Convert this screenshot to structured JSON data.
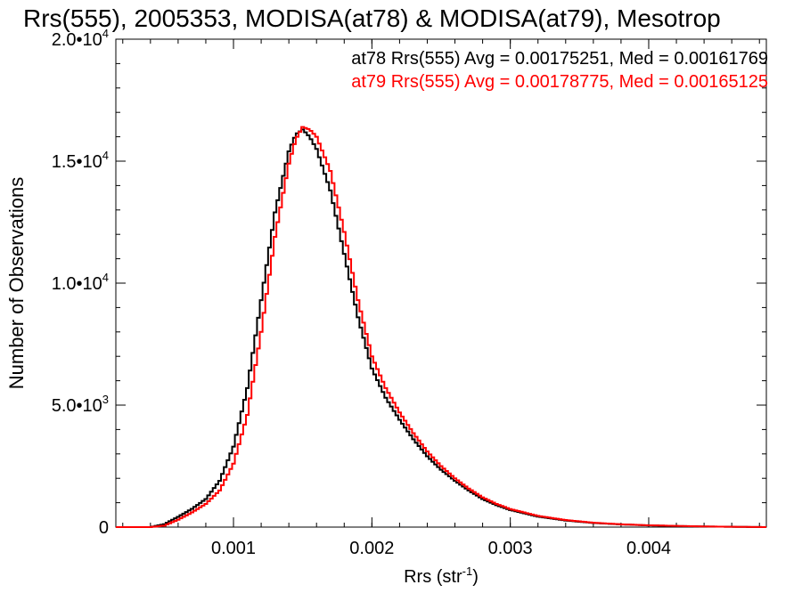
{
  "chart_data": {
    "type": "line",
    "title": "Rrs(555), 2005353, MODISA(at78) & MODISA(at79), Mesotrop",
    "xlabel": "Rrs (str",
    "xlabel_sup": "-1",
    "xlabel_close": ")",
    "ylabel": "Number of Observations",
    "xlim": [
      0.00015,
      0.00485
    ],
    "ylim": [
      0,
      20000
    ],
    "x_ticks": [
      {
        "value": 0.001,
        "label": "0.001"
      },
      {
        "value": 0.002,
        "label": "0.002"
      },
      {
        "value": 0.003,
        "label": "0.003"
      },
      {
        "value": 0.004,
        "label": "0.004"
      }
    ],
    "y_ticks": [
      {
        "value": 0,
        "label": "0",
        "exp": ""
      },
      {
        "value": 5000,
        "label": "5.0•10",
        "exp": "3"
      },
      {
        "value": 10000,
        "label": "1.0•10",
        "exp": "4"
      },
      {
        "value": 15000,
        "label": "1.5•10",
        "exp": "4"
      },
      {
        "value": 20000,
        "label": "2.0•10",
        "exp": "4"
      }
    ],
    "x_minor_step": 0.0002,
    "y_minor_step": 1000,
    "grid": false,
    "legend_position": "top-right",
    "series": [
      {
        "name": "at78",
        "legend": "at78 Rrs(555) Avg = 0.00175251, Med = 0.00161769",
        "color": "#000000",
        "points": [
          [
            0.00015,
            0
          ],
          [
            0.0004,
            0
          ],
          [
            0.0005,
            120
          ],
          [
            0.0006,
            420
          ],
          [
            0.0007,
            750
          ],
          [
            0.0008,
            1150
          ],
          [
            0.0009,
            1900
          ],
          [
            0.001,
            3300
          ],
          [
            0.0011,
            5700
          ],
          [
            0.0012,
            9300
          ],
          [
            0.0013,
            12900
          ],
          [
            0.0014,
            15400
          ],
          [
            0.00145,
            16100
          ],
          [
            0.0015,
            16300
          ],
          [
            0.00155,
            16000
          ],
          [
            0.0016,
            15500
          ],
          [
            0.0017,
            13800
          ],
          [
            0.0018,
            11200
          ],
          [
            0.0019,
            8600
          ],
          [
            0.002,
            6500
          ],
          [
            0.0021,
            5300
          ],
          [
            0.0022,
            4400
          ],
          [
            0.0023,
            3600
          ],
          [
            0.0024,
            2900
          ],
          [
            0.0025,
            2350
          ],
          [
            0.0026,
            1900
          ],
          [
            0.0027,
            1500
          ],
          [
            0.0028,
            1150
          ],
          [
            0.0029,
            900
          ],
          [
            0.003,
            700
          ],
          [
            0.0032,
            430
          ],
          [
            0.0034,
            270
          ],
          [
            0.0036,
            170
          ],
          [
            0.0038,
            110
          ],
          [
            0.004,
            70
          ],
          [
            0.0042,
            45
          ],
          [
            0.0044,
            25
          ],
          [
            0.0046,
            12
          ],
          [
            0.00485,
            0
          ]
        ]
      },
      {
        "name": "at79",
        "legend": "at79 Rrs(555) Avg = 0.00178775, Med = 0.00165125",
        "color": "#ff0000",
        "points": [
          [
            0.00015,
            0
          ],
          [
            0.0004,
            0
          ],
          [
            0.0005,
            60
          ],
          [
            0.0006,
            300
          ],
          [
            0.0007,
            600
          ],
          [
            0.0008,
            950
          ],
          [
            0.0009,
            1500
          ],
          [
            0.001,
            2600
          ],
          [
            0.0011,
            4600
          ],
          [
            0.0012,
            8000
          ],
          [
            0.0013,
            11900
          ],
          [
            0.0014,
            14900
          ],
          [
            0.00145,
            15900
          ],
          [
            0.0015,
            16400
          ],
          [
            0.00155,
            16300
          ],
          [
            0.0016,
            16000
          ],
          [
            0.0017,
            14600
          ],
          [
            0.0018,
            12100
          ],
          [
            0.0019,
            9300
          ],
          [
            0.002,
            7000
          ],
          [
            0.0021,
            5700
          ],
          [
            0.0022,
            4700
          ],
          [
            0.0023,
            3850
          ],
          [
            0.0024,
            3100
          ],
          [
            0.0025,
            2500
          ],
          [
            0.0026,
            2000
          ],
          [
            0.0027,
            1580
          ],
          [
            0.0028,
            1220
          ],
          [
            0.0029,
            950
          ],
          [
            0.003,
            740
          ],
          [
            0.0032,
            460
          ],
          [
            0.0034,
            290
          ],
          [
            0.0036,
            180
          ],
          [
            0.0038,
            115
          ],
          [
            0.004,
            75
          ],
          [
            0.0042,
            48
          ],
          [
            0.0044,
            27
          ],
          [
            0.0046,
            13
          ],
          [
            0.00485,
            0
          ]
        ]
      }
    ]
  }
}
